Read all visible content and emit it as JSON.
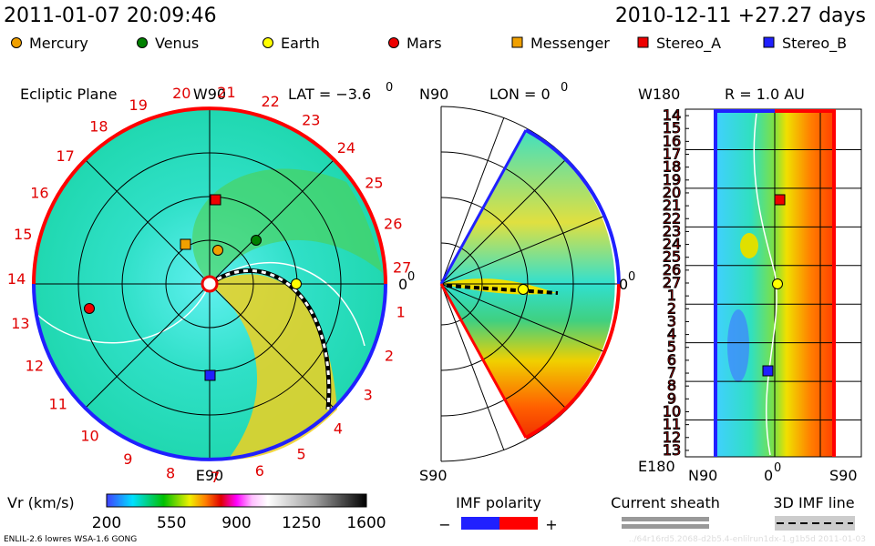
{
  "header": {
    "time": "2011-01-07 20:09:46",
    "run": "2010-12-11 +27.27 days"
  },
  "bodies": [
    "Mercury",
    "Venus",
    "Earth",
    "Mars",
    "Messenger",
    "Stereo_A",
    "Stereo_B"
  ],
  "ecliptic": {
    "title": "Ecliptic Plane",
    "top": "W90",
    "bottom": "E90",
    "lat": "LAT = −3.6",
    "lat_sup": "0",
    "right": "0",
    "right_sup": "0",
    "clock": [
      1,
      2,
      3,
      4,
      5,
      6,
      7,
      8,
      9,
      10,
      11,
      12,
      13,
      14,
      15,
      16,
      17,
      18,
      19,
      20,
      21,
      22,
      23,
      24,
      25,
      26,
      27
    ]
  },
  "meridional": {
    "top": "N90",
    "bottom": "S90",
    "lon": "LON = 0",
    "lon_sup": "0",
    "right": "0",
    "right_sup": "0"
  },
  "radial": {
    "title": "R = 1.0 AU",
    "top": "W180",
    "bottom": "E180",
    "x_left": "N90",
    "x_mid": "0",
    "x_mid_sup": "0",
    "x_right": "S90",
    "rows": [
      14,
      15,
      16,
      17,
      18,
      19,
      20,
      21,
      22,
      23,
      24,
      25,
      26,
      27,
      1,
      2,
      3,
      4,
      5,
      6,
      7,
      8,
      9,
      10,
      11,
      12,
      13
    ]
  },
  "colorbar": {
    "label": "Vr (km/s)",
    "ticks": [
      200,
      550,
      900,
      1250,
      1600
    ]
  },
  "legend2": {
    "polarity": "IMF polarity",
    "minus": "−",
    "plus": "+",
    "sheath": "Current sheath",
    "imf_line": "3D IMF line"
  },
  "footer": {
    "left": "ENLIL-2.6 lowres WSA-1.6 GONG",
    "right": "../64r16rd5.2068-d2b5.4-enlilrun1dx-1.g1b5d   2011-01-03"
  }
}
